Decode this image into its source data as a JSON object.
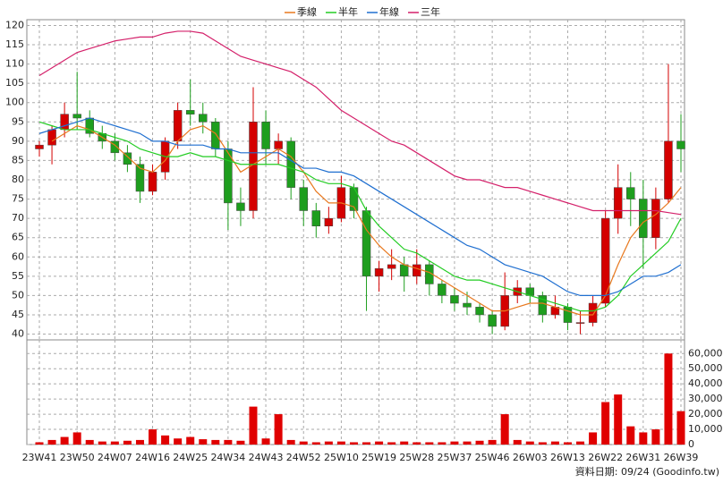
{
  "chart_data": {
    "type": "candlestick",
    "categories": [
      "23W41",
      null,
      null,
      "23W50",
      null,
      null,
      "24W07",
      null,
      null,
      "24W16",
      null,
      null,
      "24W25",
      null,
      null,
      "24W34",
      null,
      null,
      "24W43",
      null,
      null,
      "24W52",
      null,
      null,
      "25W10",
      null,
      null,
      "25W19",
      null,
      null,
      "25W28",
      null,
      null,
      "25W37",
      null,
      null,
      "25W46",
      null,
      null,
      "26W03",
      null,
      null,
      "26W13",
      null,
      null,
      "26W22",
      null,
      null,
      "26W31",
      null,
      null,
      "26W39"
    ],
    "open": [
      88,
      89,
      93,
      97,
      96,
      92,
      90,
      87,
      84,
      77,
      82,
      90,
      98,
      97,
      95,
      88,
      74,
      72,
      95,
      88,
      90,
      78,
      72,
      68,
      70,
      78,
      72,
      55,
      57,
      58,
      55,
      58,
      53,
      50,
      48,
      47,
      45,
      42,
      50,
      52,
      50,
      45,
      47,
      43,
      43,
      48,
      70,
      78,
      75,
      65,
      75,
      90
    ],
    "high": [
      90,
      94,
      100,
      108,
      98,
      94,
      92,
      89,
      86,
      84,
      91,
      100,
      106,
      100,
      96,
      90,
      78,
      104,
      98,
      92,
      91,
      80,
      74,
      73,
      81,
      79,
      73,
      59,
      62,
      60,
      62,
      59,
      54,
      52,
      51,
      48,
      46,
      56,
      54,
      53,
      51,
      50,
      48,
      46,
      50,
      72,
      84,
      82,
      80,
      78,
      110,
      97
    ],
    "low": [
      86,
      84,
      91,
      93,
      91,
      88,
      85,
      82,
      74,
      76,
      80,
      88,
      94,
      92,
      86,
      67,
      68,
      70,
      84,
      84,
      75,
      68,
      65,
      66,
      69,
      70,
      46,
      51,
      54,
      51,
      53,
      50,
      48,
      46,
      45,
      43,
      40,
      41,
      48,
      48,
      43,
      44,
      41,
      40,
      42,
      47,
      66,
      68,
      57,
      62,
      74,
      82
    ],
    "close": [
      89,
      93,
      97,
      96,
      92,
      90,
      87,
      84,
      77,
      82,
      90,
      98,
      97,
      95,
      88,
      74,
      72,
      95,
      88,
      90,
      78,
      72,
      68,
      70,
      78,
      72,
      55,
      57,
      58,
      55,
      58,
      53,
      50,
      48,
      47,
      45,
      42,
      50,
      52,
      50,
      45,
      47,
      43,
      43,
      48,
      70,
      78,
      75,
      65,
      75,
      90,
      88
    ],
    "up_color": "#d40000",
    "down_color": "#1e9e1e",
    "series": [
      {
        "name": "季線",
        "color": "#e8781e",
        "values": [
          null,
          90,
          92,
          94,
          93,
          91,
          89,
          86,
          83,
          82,
          85,
          90,
          93,
          94,
          92,
          87,
          82,
          84,
          86,
          88,
          86,
          82,
          77,
          74,
          74,
          73,
          67,
          63,
          60,
          58,
          57,
          56,
          54,
          52,
          50,
          48,
          46,
          46,
          47,
          48,
          48,
          47,
          46,
          45,
          45,
          50,
          58,
          65,
          69,
          71,
          74,
          78
        ]
      },
      {
        "name": "半年",
        "color": "#22cc22",
        "values": [
          95,
          94,
          93,
          93,
          93,
          92,
          91,
          90,
          88,
          87,
          86,
          86,
          87,
          86,
          86,
          85,
          84,
          84,
          84,
          84,
          83,
          82,
          80,
          79,
          79,
          78,
          72,
          68,
          65,
          62,
          61,
          59,
          57,
          55,
          54,
          54,
          53,
          52,
          51,
          50,
          49,
          48,
          47,
          46,
          46,
          47,
          50,
          55,
          58,
          61,
          64,
          70
        ]
      },
      {
        "name": "年線",
        "color": "#1f6fd0",
        "values": [
          92,
          93,
          94,
          95,
          96,
          95,
          94,
          93,
          92,
          90,
          90,
          89,
          89,
          89,
          88,
          88,
          87,
          87,
          87,
          87,
          85,
          83,
          83,
          82,
          82,
          81,
          79,
          77,
          75,
          73,
          71,
          69,
          67,
          65,
          63,
          62,
          60,
          58,
          57,
          56,
          55,
          53,
          51,
          50,
          50,
          50,
          51,
          53,
          55,
          55,
          56,
          58
        ]
      },
      {
        "name": "三年",
        "color": "#d4206a",
        "values": [
          107,
          109,
          111,
          113,
          114,
          115,
          116,
          116.5,
          117,
          117,
          118,
          118.5,
          118.5,
          118,
          116,
          114,
          112,
          111,
          110,
          109,
          108,
          106,
          104,
          101,
          98,
          96,
          94,
          92,
          90,
          89,
          87,
          85,
          83,
          81,
          80,
          80,
          79,
          78,
          78,
          77,
          76,
          75,
          74,
          73,
          72,
          72,
          72,
          72,
          72,
          72,
          71.5,
          71
        ]
      }
    ],
    "ylim": [
      38.5,
      121.5
    ],
    "yticks": [
      40,
      45,
      50,
      55,
      60,
      65,
      70,
      75,
      80,
      85,
      90,
      95,
      100,
      105,
      110,
      115,
      120
    ],
    "volume": {
      "color": "#e00000",
      "values": [
        1500,
        3000,
        5000,
        8000,
        3000,
        2000,
        2000,
        2500,
        3000,
        10000,
        6000,
        4000,
        5000,
        3500,
        3000,
        3000,
        2500,
        25000,
        4000,
        20000,
        3000,
        2000,
        1500,
        2000,
        2000,
        1500,
        1500,
        2000,
        1500,
        2000,
        1500,
        1500,
        1500,
        2000,
        2000,
        2500,
        3000,
        20000,
        3000,
        2000,
        1500,
        2000,
        1500,
        2000,
        8000,
        28000,
        33000,
        12000,
        8000,
        10000,
        60000,
        22000
      ]
    },
    "y2lim": [
      0,
      69000
    ],
    "y2ticks": [
      0,
      {
        "value": 10000,
        "label": "10,000"
      },
      {
        "value": 20000,
        "label": "20,000"
      },
      {
        "value": 30000,
        "label": "30,000"
      },
      {
        "value": 40000,
        "label": "40,000"
      },
      {
        "value": 50000,
        "label": "50,000"
      },
      {
        "value": 60000,
        "label": "60,000"
      }
    ],
    "grid": true,
    "legend": "top"
  },
  "footer": "資料日期: 09/24 (Goodinfo.tw)"
}
